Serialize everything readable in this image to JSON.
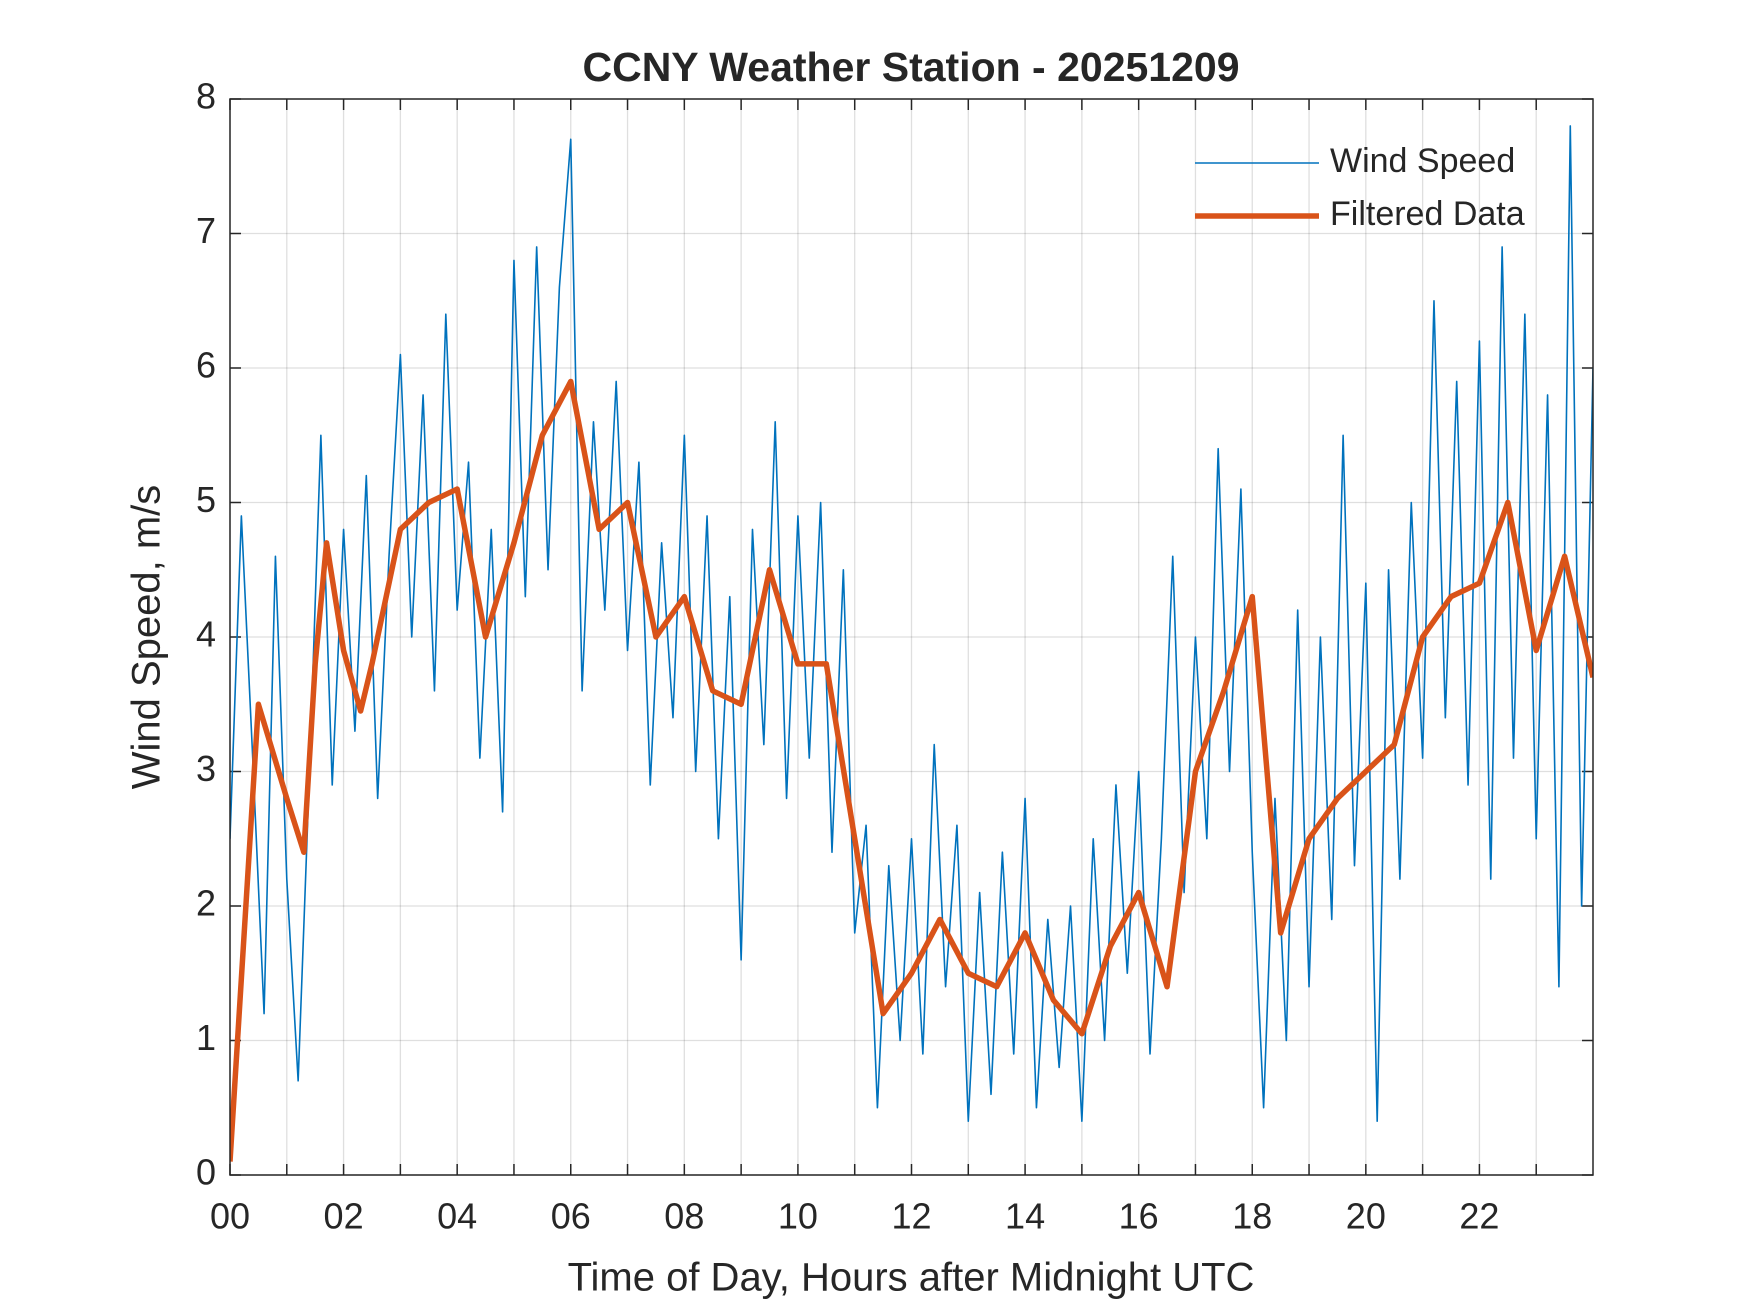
{
  "chart_data": {
    "type": "line",
    "title": "CCNY Weather Station - 20251209",
    "xlabel": "Time of Day, Hours after Midnight UTC",
    "ylabel": "Wind Speed, m/s",
    "xlim": [
      0,
      24
    ],
    "ylim": [
      0,
      8
    ],
    "xticks": [
      {
        "value": 0,
        "label": "00"
      },
      {
        "value": 2,
        "label": "02"
      },
      {
        "value": 4,
        "label": "04"
      },
      {
        "value": 6,
        "label": "06"
      },
      {
        "value": 8,
        "label": "08"
      },
      {
        "value": 10,
        "label": "10"
      },
      {
        "value": 12,
        "label": "12"
      },
      {
        "value": 14,
        "label": "14"
      },
      {
        "value": 16,
        "label": "16"
      },
      {
        "value": 18,
        "label": "18"
      },
      {
        "value": 20,
        "label": "20"
      },
      {
        "value": 22,
        "label": "22"
      }
    ],
    "xminorticks": [
      1,
      3,
      5,
      7,
      9,
      11,
      13,
      15,
      17,
      19,
      21,
      23
    ],
    "yticks": [
      0,
      1,
      2,
      3,
      4,
      5,
      6,
      7,
      8
    ],
    "grid": true,
    "legend": "top-right",
    "series": [
      {
        "name": "Wind Speed",
        "color": "#0072BD",
        "width": 1.6,
        "x": [
          0,
          0.2,
          0.4,
          0.6,
          0.8,
          1,
          1.2,
          1.4,
          1.6,
          1.8,
          2,
          2.2,
          2.4,
          2.6,
          2.8,
          3,
          3.2,
          3.4,
          3.6,
          3.8,
          4,
          4.2,
          4.4,
          4.6,
          4.8,
          5,
          5.2,
          5.4,
          5.6,
          5.8,
          6,
          6.2,
          6.4,
          6.6,
          6.8,
          7,
          7.2,
          7.4,
          7.6,
          7.8,
          8,
          8.2,
          8.4,
          8.6,
          8.8,
          9,
          9.2,
          9.4,
          9.6,
          9.8,
          10,
          10.2,
          10.4,
          10.6,
          10.8,
          11,
          11.2,
          11.4,
          11.6,
          11.8,
          12,
          12.2,
          12.4,
          12.6,
          12.8,
          13,
          13.2,
          13.4,
          13.6,
          13.8,
          14,
          14.2,
          14.4,
          14.6,
          14.8,
          15,
          15.2,
          15.4,
          15.6,
          15.8,
          16,
          16.2,
          16.4,
          16.6,
          16.8,
          17,
          17.2,
          17.4,
          17.6,
          17.8,
          18,
          18.2,
          18.4,
          18.6,
          18.8,
          19,
          19.2,
          19.4,
          19.6,
          19.8,
          20,
          20.2,
          20.4,
          20.6,
          20.8,
          21,
          21.2,
          21.4,
          21.6,
          21.8,
          22,
          22.2,
          22.4,
          22.6,
          22.8,
          23,
          23.2,
          23.4,
          23.6,
          23.8,
          24
        ],
        "values": [
          2.5,
          4.9,
          3.1,
          1.2,
          4.6,
          2.2,
          0.7,
          3.0,
          5.5,
          2.9,
          4.8,
          3.3,
          5.2,
          2.8,
          4.6,
          6.1,
          4.0,
          5.8,
          3.6,
          6.4,
          4.2,
          5.3,
          3.1,
          4.8,
          2.7,
          6.8,
          4.3,
          6.9,
          4.5,
          6.6,
          7.7,
          3.6,
          5.6,
          4.2,
          5.9,
          3.9,
          5.3,
          2.9,
          4.7,
          3.4,
          5.5,
          3.0,
          4.9,
          2.5,
          4.3,
          1.6,
          4.8,
          3.2,
          5.6,
          2.8,
          4.9,
          3.1,
          5.0,
          2.4,
          4.5,
          1.8,
          2.6,
          0.5,
          2.3,
          1.0,
          2.5,
          0.9,
          3.2,
          1.4,
          2.6,
          0.4,
          2.1,
          0.6,
          2.4,
          0.9,
          2.8,
          0.5,
          1.9,
          0.8,
          2.0,
          0.4,
          2.5,
          1.0,
          2.9,
          1.5,
          3.0,
          0.9,
          2.5,
          4.6,
          2.1,
          4.0,
          2.5,
          5.4,
          3.0,
          5.1,
          2.4,
          0.5,
          2.8,
          1.0,
          4.2,
          1.4,
          4.0,
          1.9,
          5.5,
          2.3,
          4.4,
          0.4,
          4.5,
          2.2,
          5.0,
          3.1,
          6.5,
          3.4,
          5.9,
          2.9,
          6.2,
          2.2,
          6.9,
          3.1,
          6.4,
          2.5,
          5.8,
          1.4,
          7.8,
          2.0,
          6.0
        ]
      },
      {
        "name": "Filtered Data",
        "color": "#D95319",
        "width": 5.5,
        "x": [
          0,
          0.5,
          1,
          1.3,
          1.5,
          1.7,
          2,
          2.3,
          2.5,
          3,
          3.5,
          4,
          4.5,
          5,
          5.5,
          6,
          6.5,
          7,
          7.5,
          8,
          8.5,
          9,
          9.5,
          10,
          10.5,
          11,
          11.5,
          12,
          12.5,
          13,
          13.5,
          14,
          14.5,
          15,
          15.5,
          16,
          16.5,
          17,
          17.5,
          18,
          18.5,
          19,
          19.5,
          20,
          20.5,
          21,
          21.5,
          22,
          22.5,
          23,
          23.5,
          24
        ],
        "values": [
          0.1,
          3.5,
          2.8,
          2.4,
          3.8,
          4.7,
          3.9,
          3.45,
          3.8,
          4.8,
          5.0,
          5.1,
          4.0,
          4.7,
          5.5,
          5.9,
          4.8,
          5.0,
          4.0,
          4.3,
          3.6,
          3.5,
          4.5,
          3.8,
          3.8,
          2.5,
          1.2,
          1.5,
          1.9,
          1.5,
          1.4,
          1.8,
          1.3,
          1.05,
          1.7,
          2.1,
          1.4,
          3.0,
          3.6,
          4.3,
          1.8,
          2.5,
          2.8,
          3.0,
          3.2,
          4.0,
          4.3,
          4.4,
          5.0,
          3.9,
          4.6,
          3.7
        ]
      }
    ]
  }
}
